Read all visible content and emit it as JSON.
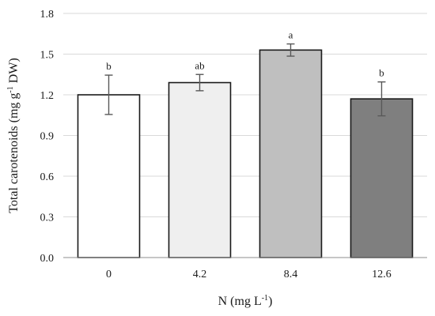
{
  "chart_data": {
    "type": "bar",
    "title": "",
    "xlabel": "N (mg L",
    "xlabel_sup": "-1",
    "xlabel_end": ")",
    "ylabel": "Total carotenoids (mg g",
    "ylabel_sup": "-1",
    "ylabel_end": " DW)",
    "categories": [
      "0",
      "4.2",
      "8.4",
      "12.6"
    ],
    "values": [
      1.2,
      1.29,
      1.53,
      1.17
    ],
    "error": [
      0.145,
      0.06,
      0.045,
      0.125
    ],
    "significance": [
      "b",
      "ab",
      "a",
      "b"
    ],
    "bar_colors": [
      "#ffffff",
      "#efefef",
      "#bfbfbf",
      "#7f7f7f"
    ],
    "ylim": [
      0,
      1.8
    ],
    "yticks": [
      0,
      0.3,
      0.6,
      0.9,
      1.2,
      1.5,
      1.8
    ],
    "ytick_labels": [
      "0.0",
      "0.3",
      "0.6",
      "0.9",
      "1.2",
      "1.5",
      "1.8"
    ],
    "grid": true,
    "legend": "none"
  }
}
